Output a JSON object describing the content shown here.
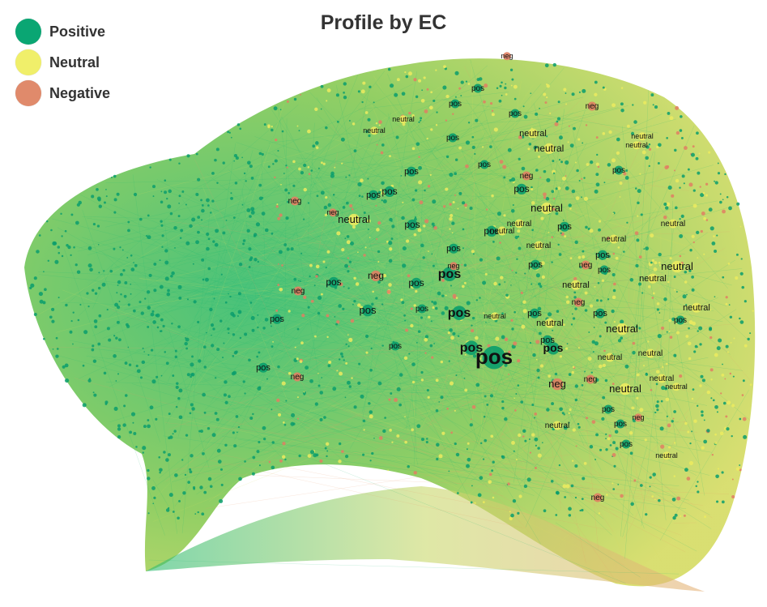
{
  "title": "Profile by EC",
  "legend": [
    {
      "label": "Positive",
      "color": "#0aa673"
    },
    {
      "label": "Neutral",
      "color": "#f0ef6a"
    },
    {
      "label": "Negative",
      "color": "#e08a6b"
    }
  ],
  "node_labels": {
    "positive": "pos",
    "neutral": "neutral",
    "negative": "neg"
  },
  "colors": {
    "positive_node": "#0a9d6c",
    "neutral_node": "#eceb5f",
    "negative_node": "#e07f63",
    "edge_green": "#20b772",
    "edge_yellow": "#d9db63",
    "edge_orange": "#e79a6a",
    "label_text": "#111111"
  }
}
